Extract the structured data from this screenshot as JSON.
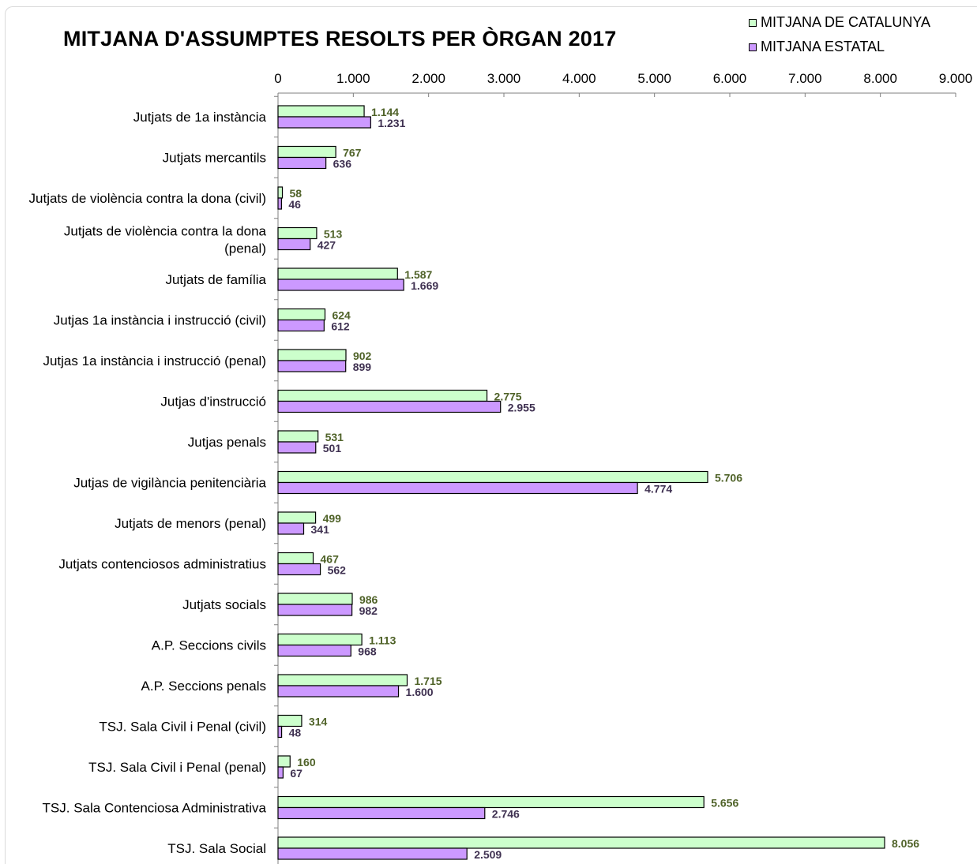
{
  "chart_data": {
    "type": "bar",
    "orientation": "horizontal",
    "title": "MITJANA D'ASSUMPTES RESOLTS PER ÒRGAN 2017",
    "xlim": [
      0,
      9000
    ],
    "x_ticks": [
      "0",
      "1.000",
      "2.000",
      "3.000",
      "4.000",
      "5.000",
      "6.000",
      "7.000",
      "8.000",
      "9.000"
    ],
    "x_axis_position": "top",
    "grid": false,
    "legend_position": "top-right",
    "categories": [
      [
        "Jutjats de 1a instància"
      ],
      [
        "Jutjats mercantils"
      ],
      [
        "Jutjats de violència contra la dona (civil)"
      ],
      [
        "Jutjats de violència contra la dona",
        "(penal)"
      ],
      [
        "Jutjats de família"
      ],
      [
        "Jutjas 1a instància  i instrucció  (civil)"
      ],
      [
        "Jutjas 1a instància  i instrucció  (penal)"
      ],
      [
        "Jutjas d'instrucció"
      ],
      [
        "Jutjas penals"
      ],
      [
        "Jutjas de vigilància penitenciària"
      ],
      [
        "Jutjats de menors (penal)"
      ],
      [
        "Jutjats contenciosos administratius"
      ],
      [
        "Jutjats socials"
      ],
      [
        "A.P. Seccions civils"
      ],
      [
        "A.P. Seccions penals"
      ],
      [
        "TSJ. Sala Civil i Penal (civil)"
      ],
      [
        "TSJ. Sala Civil i Penal (penal)"
      ],
      [
        "TSJ. Sala Contenciosa Administrativa"
      ],
      [
        "TSJ. Sala Social"
      ]
    ],
    "series": [
      {
        "name": "MITJANA DE CATALUNYA",
        "color": "#ccffcc",
        "label_color": "#4f6228",
        "values": [
          1144,
          767,
          58,
          513,
          1587,
          624,
          902,
          2775,
          531,
          5706,
          499,
          467,
          986,
          1113,
          1715,
          314,
          160,
          5656,
          8056
        ],
        "labels": [
          "1.144",
          "767",
          "58",
          "513",
          "1.587",
          "624",
          "902",
          "2.775",
          "531",
          "5.706",
          "499",
          "467",
          "986",
          "1.113",
          "1.715",
          "314",
          "160",
          "5.656",
          "8.056"
        ]
      },
      {
        "name": "MITJANA ESTATAL",
        "color": "#cc99ff",
        "label_color": "#3f3151",
        "values": [
          1231,
          636,
          46,
          427,
          1669,
          612,
          899,
          2955,
          501,
          4774,
          341,
          562,
          982,
          968,
          1600,
          48,
          67,
          2746,
          2509
        ],
        "labels": [
          "1.231",
          "636",
          "46",
          "427",
          "1.669",
          "612",
          "899",
          "2.955",
          "501",
          "4.774",
          "341",
          "562",
          "982",
          "968",
          "1.600",
          "48",
          "67",
          "2.746",
          "2.509"
        ]
      }
    ]
  }
}
